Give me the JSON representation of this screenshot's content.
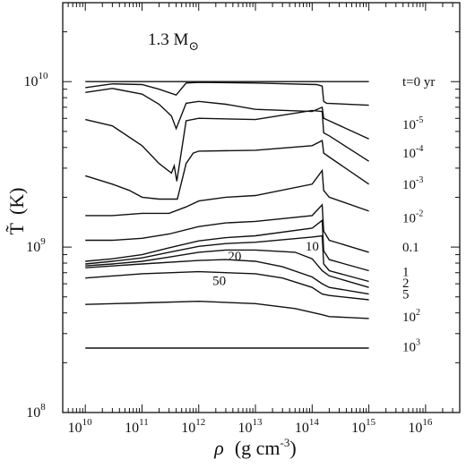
{
  "chart_data": {
    "type": "line",
    "title": "1.3 M⊙",
    "title_parts": {
      "text": "1.3 M",
      "subscript": "⊙"
    },
    "xlabel": "ρ  (g cm⁻³)",
    "xlabel_parts": {
      "symbol": "ρ",
      "unit": "(g cm",
      "unit_exp": "-3",
      "close": ")"
    },
    "ylabel": "T̃  (K)",
    "ylabel_parts": {
      "symbol": "T̃",
      "unit": "(K)"
    },
    "x_scale": "log",
    "y_scale": "log",
    "xlim": [
      4000000000.0,
      4e+16
    ],
    "ylim": [
      100000000.0,
      30000000000.0
    ],
    "x_ticks": [
      {
        "base": "10",
        "exp": "10",
        "value": 10000000000.0
      },
      {
        "base": "10",
        "exp": "11",
        "value": 100000000000.0
      },
      {
        "base": "10",
        "exp": "12",
        "value": 1000000000000.0
      },
      {
        "base": "10",
        "exp": "13",
        "value": 10000000000000.0
      },
      {
        "base": "10",
        "exp": "14",
        "value": 100000000000000.0
      },
      {
        "base": "10",
        "exp": "15",
        "value": 1000000000000000.0
      },
      {
        "base": "10",
        "exp": "16",
        "value": 1e+16
      }
    ],
    "y_ticks": [
      {
        "base": "10",
        "exp": "8",
        "value": 100000000.0
      },
      {
        "base": "10",
        "exp": "9",
        "value": 1000000000.0
      },
      {
        "base": "10",
        "exp": "10",
        "value": 10000000000.0
      }
    ],
    "grid": false,
    "series": [
      {
        "points": [
          [
            10000000000.0,
            10000000000.0
          ],
          [
            1000000000000000.0,
            10000000000.0
          ]
        ]
      },
      {
        "points": [
          [
            10000000000.0,
            9200000000.0
          ],
          [
            30000000000.0,
            9700000000.0
          ],
          [
            100000000000.0,
            9600000000.0
          ],
          [
            200000000000.0,
            9000000000.0
          ],
          [
            400000000000.0,
            8300000000.0
          ],
          [
            600000000000.0,
            9800000000.0
          ],
          [
            1000000000000.0,
            9900000000.0
          ],
          [
            10000000000000.0,
            9800000000.0
          ],
          [
            120000000000000.0,
            9600000000.0
          ],
          [
            150000000000000.0,
            9400000000.0
          ],
          [
            160000000000000.0,
            7600000000.0
          ],
          [
            180000000000000.0,
            7400000000.0
          ],
          [
            1000000000000000.0,
            7200000000.0
          ]
        ]
      },
      {
        "points": [
          [
            10000000000.0,
            8600000000.0
          ],
          [
            30000000000.0,
            9100000000.0
          ],
          [
            100000000000.0,
            8400000000.0
          ],
          [
            200000000000.0,
            7300000000.0
          ],
          [
            330000000000.0,
            6200000000.0
          ],
          [
            400000000000.0,
            5200000000.0
          ],
          [
            600000000000.0,
            7400000000.0
          ],
          [
            1000000000000.0,
            7600000000.0
          ],
          [
            3000000000000.0,
            7300000000.0
          ],
          [
            10000000000000.0,
            6800000000.0
          ],
          [
            100000000000000.0,
            6600000000.0
          ],
          [
            150000000000000.0,
            7000000000.0
          ],
          [
            160000000000000.0,
            6000000000.0
          ],
          [
            200000000000000.0,
            5800000000.0
          ],
          [
            1000000000000000.0,
            4500000000.0
          ]
        ]
      },
      {
        "points": [
          [
            10000000000.0,
            5900000000.0
          ],
          [
            30000000000.0,
            5400000000.0
          ],
          [
            100000000000.0,
            4100000000.0
          ],
          [
            200000000000.0,
            3200000000.0
          ],
          [
            330000000000.0,
            2800000000.0
          ],
          [
            370000000000.0,
            3100000000.0
          ],
          [
            410000000000.0,
            2500000000.0
          ],
          [
            600000000000.0,
            5800000000.0
          ],
          [
            1000000000000.0,
            6000000000.0
          ],
          [
            10000000000000.0,
            5900000000.0
          ],
          [
            100000000000000.0,
            6700000000.0
          ],
          [
            150000000000000.0,
            6600000000.0
          ],
          [
            160000000000000.0,
            4900000000.0
          ],
          [
            200000000000000.0,
            4700000000.0
          ],
          [
            1000000000000000.0,
            3300000000.0
          ]
        ]
      },
      {
        "points": [
          [
            10000000000.0,
            2700000000.0
          ],
          [
            30000000000.0,
            2400000000.0
          ],
          [
            60000000000.0,
            2200000000.0
          ],
          [
            100000000000.0,
            2000000000.0
          ],
          [
            200000000000.0,
            1950000000.0
          ],
          [
            420000000000.0,
            1950000000.0
          ],
          [
            600000000000.0,
            3200000000.0
          ],
          [
            800000000000.0,
            3700000000.0
          ],
          [
            1000000000000.0,
            3800000000.0
          ],
          [
            10000000000000.0,
            3850000000.0
          ],
          [
            100000000000000.0,
            4100000000.0
          ],
          [
            150000000000000.0,
            4400000000.0
          ],
          [
            160000000000000.0,
            3700000000.0
          ],
          [
            200000000000000.0,
            3500000000.0
          ],
          [
            1000000000000000.0,
            2400000000.0
          ]
        ]
      },
      {
        "points": [
          [
            10000000000.0,
            1550000000.0
          ],
          [
            30000000000.0,
            1550000000.0
          ],
          [
            100000000000.0,
            1600000000.0
          ],
          [
            300000000000.0,
            1600000000.0
          ],
          [
            600000000000.0,
            1750000000.0
          ],
          [
            1000000000000.0,
            1900000000.0
          ],
          [
            3000000000000.0,
            2000000000.0
          ],
          [
            10000000000000.0,
            2050000000.0
          ],
          [
            100000000000000.0,
            2400000000.0
          ],
          [
            150000000000000.0,
            2900000000.0
          ],
          [
            160000000000000.0,
            2200000000.0
          ],
          [
            200000000000000.0,
            2000000000.0
          ],
          [
            1000000000000000.0,
            1650000000.0
          ]
        ]
      },
      {
        "points": [
          [
            10000000000.0,
            1100000000.0
          ],
          [
            30000000000.0,
            1100000000.0
          ],
          [
            100000000000.0,
            1130000000.0
          ],
          [
            300000000000.0,
            1200000000.0
          ],
          [
            1000000000000.0,
            1330000000.0
          ],
          [
            3000000000000.0,
            1400000000.0
          ],
          [
            10000000000000.0,
            1430000000.0
          ],
          [
            100000000000000.0,
            1550000000.0
          ],
          [
            150000000000000.0,
            1800000000.0
          ],
          [
            160000000000000.0,
            1250000000.0
          ],
          [
            200000000000000.0,
            1100000000.0
          ],
          [
            1000000000000000.0,
            930000000.0
          ]
        ]
      },
      {
        "points": [
          [
            10000000000.0,
            820000000.0
          ],
          [
            30000000000.0,
            850000000.0
          ],
          [
            100000000000.0,
            900000000.0
          ],
          [
            300000000000.0,
            990000000.0
          ],
          [
            1000000000000.0,
            1090000000.0
          ],
          [
            3000000000000.0,
            1140000000.0
          ],
          [
            10000000000000.0,
            1170000000.0
          ],
          [
            100000000000000.0,
            1300000000.0
          ],
          [
            150000000000000.0,
            1450000000.0
          ],
          [
            160000000000000.0,
            950000000.0
          ],
          [
            200000000000000.0,
            840000000.0
          ],
          [
            1000000000000000.0,
            720000000.0
          ]
        ]
      },
      {
        "points": [
          [
            10000000000.0,
            790000000.0
          ],
          [
            30000000000.0,
            820000000.0
          ],
          [
            100000000000.0,
            860000000.0
          ],
          [
            300000000000.0,
            930000000.0
          ],
          [
            1000000000000.0,
            1010000000.0
          ],
          [
            3000000000000.0,
            1050000000.0
          ],
          [
            10000000000000.0,
            1070000000.0
          ],
          [
            100000000000000.0,
            1150000000.0
          ],
          [
            150000000000000.0,
            1170000000.0
          ],
          [
            160000000000000.0,
            790000000.0
          ],
          [
            200000000000000.0,
            720000000.0
          ],
          [
            1000000000000000.0,
            620000000.0
          ]
        ]
      },
      {
        "points": [
          [
            10000000000.0,
            770000000.0
          ],
          [
            30000000000.0,
            790000000.0
          ],
          [
            100000000000.0,
            820000000.0
          ],
          [
            300000000000.0,
            870000000.0
          ],
          [
            1000000000000.0,
            930000000.0
          ],
          [
            3000000000000.0,
            960000000.0
          ],
          [
            10000000000000.0,
            960000000.0
          ],
          [
            50000000000000.0,
            930000000.0
          ],
          [
            100000000000000.0,
            850000000.0
          ],
          [
            150000000000000.0,
            720000000.0
          ],
          [
            200000000000000.0,
            670000000.0
          ],
          [
            1000000000000000.0,
            570000000.0
          ]
        ]
      },
      {
        "points": [
          [
            10000000000.0,
            750000000.0
          ],
          [
            100000000000.0,
            790000000.0
          ],
          [
            1000000000000.0,
            830000000.0
          ],
          [
            3000000000000.0,
            840000000.0
          ],
          [
            10000000000000.0,
            820000000.0
          ],
          [
            30000000000000.0,
            760000000.0
          ],
          [
            100000000000000.0,
            660000000.0
          ],
          [
            150000000000000.0,
            600000000.0
          ],
          [
            200000000000000.0,
            570000000.0
          ],
          [
            1000000000000000.0,
            520000000.0
          ]
        ]
      },
      {
        "points": [
          [
            10000000000.0,
            650000000.0
          ],
          [
            100000000000.0,
            690000000.0
          ],
          [
            1000000000000.0,
            710000000.0
          ],
          [
            10000000000000.0,
            690000000.0
          ],
          [
            30000000000000.0,
            650000000.0
          ],
          [
            100000000000000.0,
            570000000.0
          ],
          [
            150000000000000.0,
            520000000.0
          ],
          [
            200000000000000.0,
            510000000.0
          ],
          [
            1000000000000000.0,
            480000000.0
          ]
        ]
      },
      {
        "points": [
          [
            10000000000.0,
            450000000.0
          ],
          [
            100000000000.0,
            460000000.0
          ],
          [
            1000000000000.0,
            470000000.0
          ],
          [
            10000000000000.0,
            455000000.0
          ],
          [
            50000000000000.0,
            425000000.0
          ],
          [
            150000000000000.0,
            390000000.0
          ],
          [
            200000000000000.0,
            380000000.0
          ],
          [
            1000000000000000.0,
            370000000.0
          ]
        ]
      },
      {
        "points": [
          [
            10000000000.0,
            245000000.0
          ],
          [
            1000000000000000.0,
            245000000.0
          ]
        ]
      }
    ],
    "right_labels": [
      {
        "text": "t=0 yr",
        "exp": "",
        "y": 10000000000.0
      },
      {
        "text": "10",
        "exp": "-5",
        "y": 5500000000.0
      },
      {
        "text": "10",
        "exp": "-4",
        "y": 3700000000.0
      },
      {
        "text": "10",
        "exp": "-3",
        "y": 2400000000.0
      },
      {
        "text": "10",
        "exp": "-2",
        "y": 1500000000.0
      },
      {
        "text": "0.1",
        "exp": "",
        "y": 1000000000.0
      },
      {
        "text": "1",
        "exp": "",
        "y": 710000000.0
      },
      {
        "text": "2",
        "exp": "",
        "y": 610000000.0
      },
      {
        "text": "5",
        "exp": "",
        "y": 520000000.0
      },
      {
        "text": "10",
        "exp": "2",
        "y": 380000000.0
      },
      {
        "text": "10",
        "exp": "3",
        "y": 250000000.0
      }
    ],
    "inline_labels": [
      {
        "text": "10",
        "x": 100000000000000.0,
        "y": 950000000.0
      },
      {
        "text": "20",
        "x": 4300000000000.0,
        "y": 830000000.0
      },
      {
        "text": "50",
        "x": 2300000000000.0,
        "y": 590000000.0
      }
    ]
  }
}
